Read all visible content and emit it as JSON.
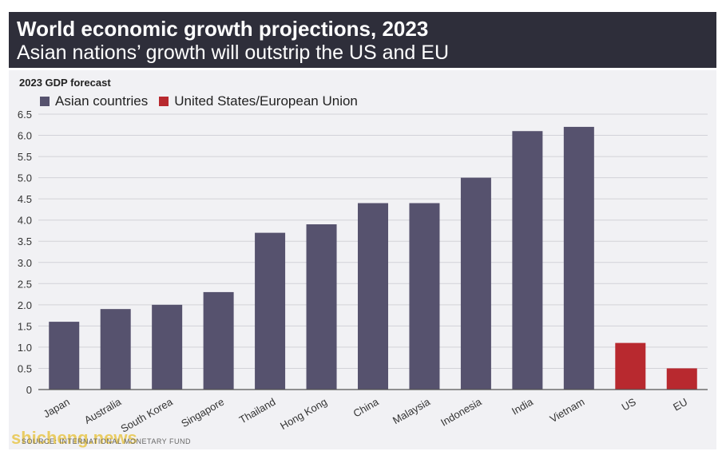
{
  "header": {
    "title": "World economic growth projections, 2023",
    "subtitle": "Asian nations’ growth will outstrip the US and EU"
  },
  "source": "SOURCE: INTERNATIONAL MONETARY FUND",
  "watermark": "shicheng.news",
  "colors": {
    "asia": "#56526e",
    "useu": "#b8292f",
    "header_bg": "#2e2e3a",
    "panel_bg": "#f1f1f4"
  },
  "chart_data": {
    "type": "bar",
    "ylabel": "2023 GDP forecast",
    "ylim": [
      0,
      6.5
    ],
    "yticks": [
      "0",
      "0.5",
      "1.0",
      "1.5",
      "2.0",
      "2.5",
      "3.0",
      "3.5",
      "4.0",
      "4.5",
      "5.0",
      "5.5",
      "6.0",
      "6.5"
    ],
    "grid": true,
    "legend_position": "top-left",
    "legend": [
      {
        "name": "Asian countries",
        "color": "#56526e"
      },
      {
        "name": "United States/European Union",
        "color": "#b8292f"
      }
    ],
    "categories": [
      "Japan",
      "Australia",
      "South Korea",
      "Singapore",
      "Thailand",
      "Hong Kong",
      "China",
      "Malaysia",
      "Indonesia",
      "India",
      "Vietnam",
      "US",
      "EU"
    ],
    "values": [
      1.6,
      1.9,
      2.0,
      2.3,
      3.7,
      3.9,
      4.4,
      4.4,
      5.0,
      6.1,
      6.2,
      1.1,
      0.5
    ],
    "groups": [
      "Asian countries",
      "Asian countries",
      "Asian countries",
      "Asian countries",
      "Asian countries",
      "Asian countries",
      "Asian countries",
      "Asian countries",
      "Asian countries",
      "Asian countries",
      "Asian countries",
      "United States/European Union",
      "United States/European Union"
    ]
  }
}
